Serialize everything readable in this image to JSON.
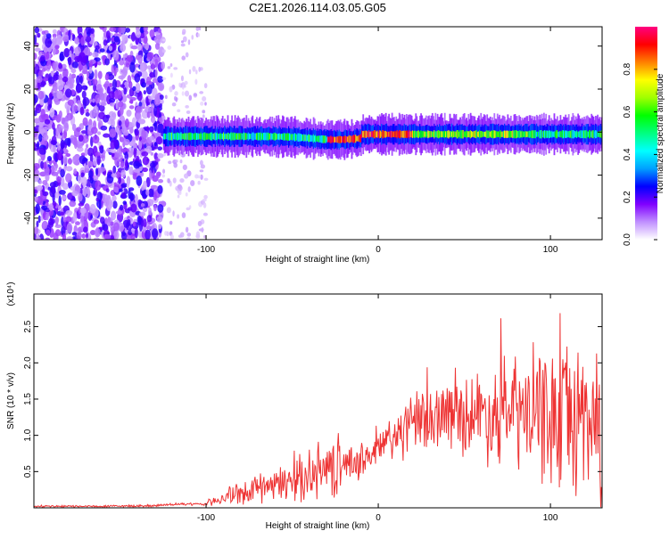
{
  "figure_title": "C2E1.2026.114.03.05.G05",
  "chart_data": [
    {
      "type": "heatmap",
      "title": "C2E1.2026.114.03.05.G05",
      "xlabel": "Height of straight line (km)",
      "ylabel": "Frequency (Hz)",
      "xlim": [
        -200,
        130
      ],
      "ylim": [
        -50,
        49
      ],
      "x_ticks": [
        -100,
        0,
        100
      ],
      "y_ticks": [
        -40,
        -20,
        0,
        20,
        40
      ],
      "colorbar": {
        "label": "Normalized spectral amplitude",
        "range": [
          0,
          1
        ],
        "ticks": [
          0.0,
          0.2,
          0.4,
          0.6,
          0.8
        ],
        "colors": [
          "#ffffff",
          "#c090ff",
          "#8000ff",
          "#0000ff",
          "#00a0ff",
          "#00ffff",
          "#00ff80",
          "#00ff00",
          "#a0ff00",
          "#ffff00",
          "#ff8000",
          "#ff0000",
          "#ff0080"
        ]
      },
      "regions": [
        {
          "name": "noise",
          "x_range": [
            -200,
            -125
          ],
          "freq_range": [
            -50,
            49
          ],
          "amplitude": 0.2
        },
        {
          "name": "sparse",
          "x_range": [
            -125,
            -100
          ],
          "freq_range": [
            -50,
            49
          ],
          "amplitude": 0.05
        },
        {
          "name": "signal_band",
          "x_range": [
            -125,
            130
          ],
          "center_hz": [
            -2,
            0
          ],
          "half_width_hz": [
            4,
            8
          ],
          "peak_amplitude": 1.0
        }
      ]
    },
    {
      "type": "line",
      "xlabel": "Height of straight line (km)",
      "ylabel": "SNR (10 * v/v)",
      "y_multiplier": "(x10⁴)",
      "xlim": [
        -200,
        130
      ],
      "ylim": [
        0,
        2.95
      ],
      "x_ticks": [
        -100,
        0,
        100
      ],
      "y_ticks": [
        0.5,
        1.0,
        1.5,
        2.0,
        2.5
      ],
      "color": "#ee3333",
      "series": [
        {
          "name": "SNR",
          "x": [
            -200,
            -160,
            -130,
            -115,
            -100,
            -90,
            -80,
            -60,
            -40,
            -20,
            -10,
            0,
            10,
            20,
            40,
            60,
            80,
            100,
            120,
            130
          ],
          "values": [
            0.02,
            0.02,
            0.03,
            0.05,
            0.05,
            0.15,
            0.2,
            0.3,
            0.45,
            0.6,
            0.65,
            0.8,
            1.0,
            1.15,
            1.3,
            1.3,
            1.3,
            1.25,
            1.25,
            1.2
          ]
        }
      ]
    }
  ]
}
